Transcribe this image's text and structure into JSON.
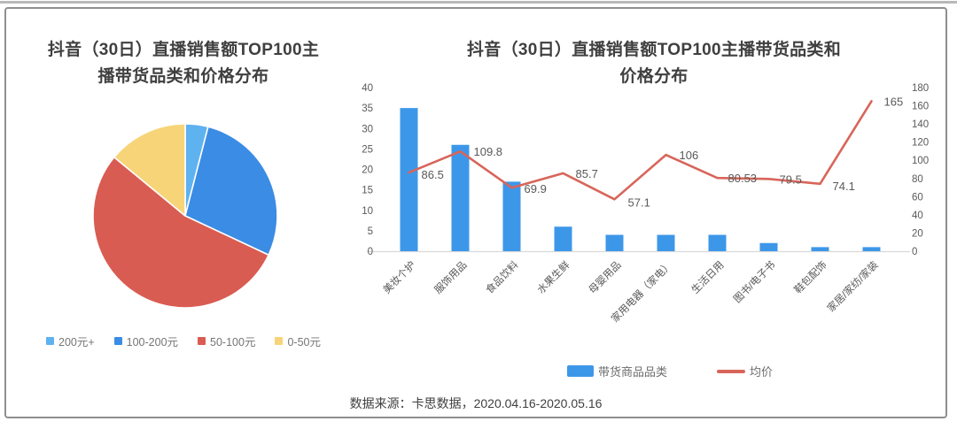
{
  "page": {
    "source_note": "数据来源：卡思数据，2020.04.16-2020.05.16"
  },
  "chart_data": [
    {
      "type": "pie",
      "title": "抖音（30日）直播销售额TOP100主播带货品类和价格分布",
      "title_lines": [
        "抖音（30日）直播销售额TOP100主",
        "播带货品类和价格分布"
      ],
      "legend_position": "bottom",
      "values_are": "estimated share of anchors (%)",
      "slices": [
        {
          "label": "200元+",
          "value": 4,
          "color": "#5FB2F0"
        },
        {
          "label": "100-200元",
          "value": 28,
          "color": "#3B8CE4"
        },
        {
          "label": "50-100元",
          "value": 54,
          "color": "#D95C52"
        },
        {
          "label": "0-50元",
          "value": 14,
          "color": "#F7D478"
        }
      ]
    },
    {
      "type": "bar+line",
      "title": "抖音（30日）直播销售额TOP100主播带货品类和价格分布",
      "title_lines": [
        "抖音（30日）直播销售额TOP100主播带货品类和",
        "价格分布"
      ],
      "categories": [
        "美妆个护",
        "服饰用品",
        "食品饮料",
        "水果生鲜",
        "母婴用品",
        "家用电器（家电）",
        "生活日用",
        "图书/电子书",
        "鞋包配饰",
        "家居/家纺/家装"
      ],
      "series": [
        {
          "name": "带货商品品类",
          "kind": "bar",
          "axis": "left",
          "color": "#3D97E9",
          "values": [
            35,
            26,
            17,
            6,
            4,
            4,
            4,
            2,
            1,
            1
          ]
        },
        {
          "name": "均价",
          "kind": "line",
          "axis": "right",
          "color": "#D8655A",
          "values": [
            86.5,
            109.8,
            69.9,
            85.7,
            57.1,
            106,
            80.53,
            79.5,
            74.1,
            165
          ],
          "point_labels": [
            "86.5",
            "109.8",
            "69.9",
            "85.7",
            "57.1",
            "106",
            "80.53",
            "79.5",
            "74.1",
            "165"
          ]
        }
      ],
      "left_axis": {
        "min": 0,
        "max": 40,
        "step": 5,
        "ticks": [
          0,
          5,
          10,
          15,
          20,
          25,
          30,
          35,
          40
        ]
      },
      "right_axis": {
        "min": 0,
        "max": 180,
        "step": 20,
        "ticks": [
          0,
          20,
          40,
          60,
          80,
          100,
          120,
          140,
          160,
          180
        ]
      },
      "grid": false,
      "legend_position": "bottom"
    }
  ]
}
